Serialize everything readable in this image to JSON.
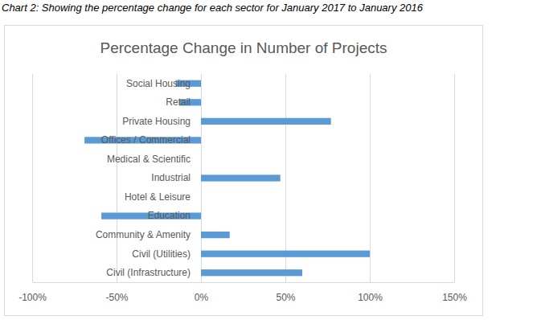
{
  "caption": "Chart 2: Showing the percentage change for each sector for January 2017 to January 2016",
  "chart_data": {
    "type": "bar",
    "orientation": "horizontal",
    "title": "Percentage Change in Number of Projects",
    "categories": [
      "Social Housing",
      "Retail",
      "Private Housing",
      "Offices / Commercial",
      "Medical & Scientific",
      "Industrial",
      "Hotel & Leisure",
      "Education",
      "Community & Amenity",
      "Civil (Utilities)",
      "Civil (Infrastructure)"
    ],
    "values": [
      -15,
      -13,
      77,
      -69,
      0,
      47,
      0,
      -59,
      17,
      100,
      60
    ],
    "color": "#5b9bd5",
    "xlim": [
      -100,
      150
    ],
    "xticks": [
      {
        "value": -100,
        "label": "-100%"
      },
      {
        "value": -50,
        "label": "-50%"
      },
      {
        "value": 0,
        "label": "0%"
      },
      {
        "value": 50,
        "label": "50%"
      },
      {
        "value": 100,
        "label": "100%"
      },
      {
        "value": 150,
        "label": "150%"
      }
    ],
    "grid": true
  }
}
